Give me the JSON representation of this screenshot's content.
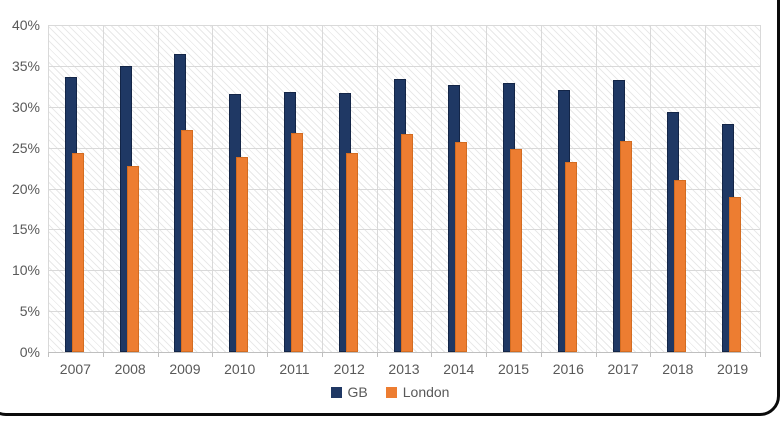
{
  "figure": {
    "background_color": "#ffffff",
    "frame_border_color": "#0b0b0b",
    "gridline_color": "#d9d9d9",
    "axis_line_color": "#bfbfbf",
    "tick_label_color": "#595959",
    "plot_pattern": "diagonal-hatch"
  },
  "legend": {
    "position": "bottom-center",
    "items": [
      {
        "label": "GB",
        "color": "#1F3864"
      },
      {
        "label": "London",
        "color": "#ED7D31"
      }
    ]
  },
  "chart_data": {
    "type": "bar",
    "title": "",
    "xlabel": "",
    "ylabel": "",
    "categories": [
      "2007",
      "2008",
      "2009",
      "2010",
      "2011",
      "2012",
      "2013",
      "2014",
      "2015",
      "2016",
      "2017",
      "2018",
      "2019"
    ],
    "series": [
      {
        "name": "GB",
        "color": "#1F3864",
        "values": [
          33.6,
          35.0,
          36.4,
          31.6,
          31.8,
          31.7,
          33.4,
          32.7,
          32.9,
          32.0,
          33.3,
          29.4,
          27.9
        ]
      },
      {
        "name": "London",
        "color": "#ED7D31",
        "values": [
          24.3,
          22.7,
          27.2,
          23.9,
          26.8,
          24.4,
          26.7,
          25.7,
          24.8,
          23.3,
          25.8,
          21.1,
          18.9
        ]
      }
    ],
    "ylim": [
      0,
      40
    ],
    "ytick_step": 5,
    "ytick_labels": [
      "40%",
      "35%",
      "30%",
      "25%",
      "20%",
      "15%",
      "10%",
      "5%",
      "0%"
    ],
    "grid": true,
    "vertical_gridlines": true,
    "legend_position": "bottom",
    "bar_overlap": true
  }
}
